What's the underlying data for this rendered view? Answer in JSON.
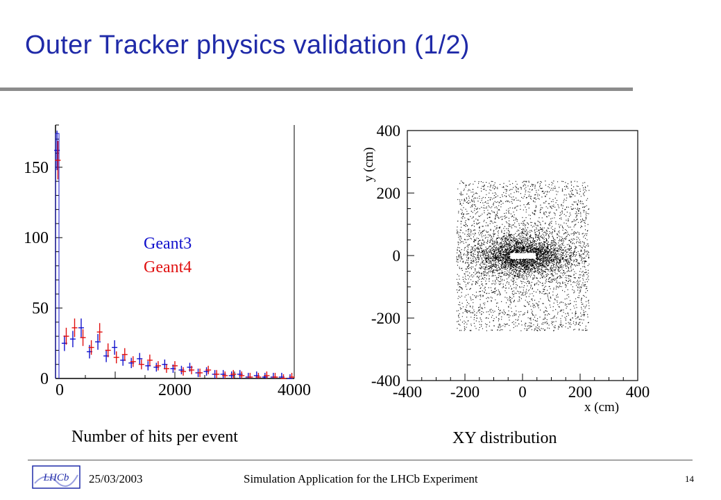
{
  "slide": {
    "title": "Outer Tracker physics validation (1/2)",
    "footer_date": "25/03/2003",
    "footer_title": "Simulation Application for the LHCb Experiment",
    "page_number": "14",
    "logo_text": "LHCb"
  },
  "colors": {
    "title": "#1f2aa8",
    "geant3": "#1010cc",
    "geant4": "#e01010",
    "rule": "#8c8c8c"
  },
  "chart_data": [
    {
      "type": "histogram",
      "caption": "Number of hits per event",
      "xlabel": "",
      "ylabel": "",
      "xlim": [
        0,
        4000
      ],
      "ylim": [
        0,
        180
      ],
      "x_ticks": [
        "0",
        "2000",
        "4000"
      ],
      "y_ticks": [
        "0",
        "50",
        "100",
        "150"
      ],
      "legend_placement": "center",
      "series": [
        {
          "name": "Geant3",
          "color": "#1010cc",
          "x": [
            25,
            150,
            290,
            430,
            570,
            710,
            850,
            990,
            1130,
            1270,
            1410,
            1550,
            1690,
            1830,
            1970,
            2110,
            2250,
            2390,
            2530,
            2670,
            2810,
            2950,
            3090,
            3230,
            3370,
            3510,
            3650,
            3790,
            3930
          ],
          "y": [
            162,
            25,
            28,
            36,
            19,
            26,
            16,
            22,
            13,
            11,
            14,
            9,
            8,
            10,
            7,
            6,
            8,
            4,
            5,
            3,
            3,
            2,
            3,
            1,
            2,
            1,
            1,
            1,
            0
          ]
        },
        {
          "name": "Geant4",
          "color": "#e01010",
          "x": [
            40,
            180,
            320,
            460,
            600,
            740,
            880,
            1020,
            1160,
            1300,
            1440,
            1580,
            1720,
            1860,
            2000,
            2140,
            2280,
            2420,
            2560,
            2700,
            2840,
            2980,
            3120,
            3260,
            3400,
            3540,
            3680,
            3820,
            3960
          ],
          "y": [
            155,
            30,
            36,
            29,
            22,
            33,
            20,
            15,
            17,
            12,
            10,
            13,
            9,
            7,
            9,
            5,
            6,
            4,
            6,
            3,
            2,
            3,
            2,
            1,
            1,
            2,
            1,
            0,
            1
          ]
        }
      ]
    },
    {
      "type": "scatter",
      "caption": "XY distribution",
      "xlabel": "x (cm)",
      "ylabel": "y (cm)",
      "xlim": [
        -400,
        400
      ],
      "ylim": [
        -400,
        400
      ],
      "x_ticks": [
        "-400",
        "-200",
        "0",
        "200",
        "400"
      ],
      "y_ticks": [
        "400",
        "200",
        "0",
        "-200",
        "-400"
      ],
      "region": {
        "x": [
          -230,
          230
        ],
        "y": [
          -240,
          240
        ]
      },
      "beam_hole": {
        "x": [
          -45,
          45
        ],
        "y": [
          -10,
          10
        ]
      }
    }
  ]
}
